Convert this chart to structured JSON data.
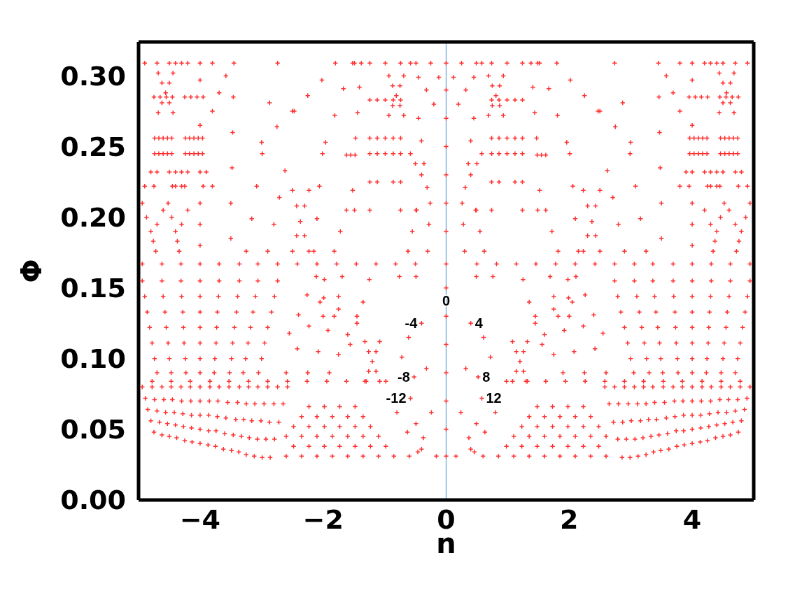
{
  "chart_data": {
    "type": "scatter",
    "xlabel": "n",
    "ylabel": "Φ",
    "marker": "cross",
    "xlim": [
      -5,
      5
    ],
    "xticks": [
      {
        "value": -4,
        "label": "−4"
      },
      {
        "value": -2,
        "label": "−2"
      },
      0,
      2,
      4
    ],
    "ylim": [
      0,
      0.324
    ],
    "yticks": [
      {
        "value": 0,
        "label": "0.00"
      },
      0.05,
      {
        "value": 0.1,
        "label": "0.10"
      },
      0.15,
      {
        "value": 0.2,
        "label": "0.20"
      },
      0.25,
      {
        "value": 0.3,
        "label": "0.30"
      }
    ],
    "ref_lines": [
      {
        "axis": "x",
        "value": 0,
        "color": "#5f9fd6"
      }
    ],
    "annotations": [
      {
        "text": "0",
        "x": 0,
        "y": 0.141
      },
      {
        "text": "-4",
        "x": -0.4,
        "y": 0.125
      },
      {
        "text": "4",
        "x": 0.4,
        "y": 0.125
      },
      {
        "text": "-8",
        "x": -0.52,
        "y": 0.087
      },
      {
        "text": "8",
        "x": 0.52,
        "y": 0.087
      },
      {
        "text": "-12",
        "x": -0.58,
        "y": 0.072
      },
      {
        "text": "12",
        "x": 0.58,
        "y": 0.072
      }
    ],
    "series": [
      {
        "color": "#ff3030",
        "x": [
          -4.94,
          -4.9,
          -4.86,
          -4.82,
          -4.78,
          -4.74,
          -4.7,
          -4.62,
          -4.6,
          -4.57,
          -4.55,
          -4.52,
          -4.5,
          -4.47,
          -4.31,
          -4.3,
          -4.28,
          -4.27,
          -4.26,
          -4.24,
          -4.23,
          -4,
          -4,
          -4,
          -4,
          -4,
          -4,
          -4,
          -3.69,
          -3.7,
          -3.72,
          -3.73,
          -3.74,
          -3.76,
          -3.77,
          -3.36,
          -3.39,
          -3.41,
          -3.44,
          -3.47,
          -3.49,
          -3.52,
          -3.06,
          -3.1,
          -3.14,
          -3.18,
          -3.22,
          -3.26,
          -3.3,
          -2.74,
          -2.79,
          -2.84,
          -2.9,
          -2.95,
          -3,
          -3.05,
          -4.94,
          -4.62,
          -4.31,
          -4,
          -3.69,
          -3.36,
          -3.06,
          -2.74,
          -2.42,
          -2.1,
          -1.78,
          -1.46,
          -1.14,
          -0.82,
          -0.5,
          -4.78,
          -4.47,
          -4.16,
          -3.84,
          -3.53,
          -3.21,
          -2.9,
          -2.58,
          -2.26,
          -1.94,
          -1.62,
          -1.3,
          -0.98,
          -4.94,
          -4.89,
          -4.85,
          -4.8,
          -4.75,
          -4.78,
          -4.74,
          -4.7,
          -4.66,
          -4.62,
          -4.62,
          -4.59,
          -4.56,
          -4.53,
          -4.5,
          -4.47,
          -4.45,
          -4.42,
          -4.4,
          -4.38,
          -4.31,
          -4.3,
          -4.28,
          -4.27,
          -4.25,
          -4.16,
          -4.15,
          -4.14,
          -4.14,
          -4.13,
          -4,
          -4,
          -4,
          -4,
          -4,
          -3.84,
          -3.85,
          -3.86,
          -3.86,
          -3.87,
          -3.69,
          -3.71,
          -3.72,
          -3.74,
          -3.75,
          -3.53,
          -3.55,
          -3.58,
          -3.6,
          -3.62,
          -3.36,
          -3.39,
          -3.42,
          -3.46,
          -3.49,
          -3.21,
          -3.25,
          -3.29,
          -3.33,
          -3.37,
          -3.06,
          -3.11,
          -3.16,
          -3.2,
          -3.25,
          -2.9,
          -2.96,
          -3.01,
          -3.07,
          -3.12,
          -2.74,
          -2.8,
          -2.87,
          -2.93,
          -2.99,
          -2.58,
          -2.65,
          -2.72,
          -2.79,
          -2.86,
          -2.6,
          -2.35,
          -2.1,
          -1.85,
          -1.6,
          -1.35,
          -1.1,
          -0.85,
          -0.6,
          -2.48,
          -2.23,
          -1.98,
          -1.73,
          -1.48,
          -1.23,
          -0.98,
          -2.6,
          -2.35,
          -2.1,
          -1.85,
          -1.6,
          -1.35,
          -1.1,
          -2.48,
          -2.23,
          -1.98,
          -1.73,
          -1.48,
          -1.23,
          -2.35,
          -2.1,
          -1.85,
          -1.6,
          -1.35,
          -2.23,
          -1.98,
          -1.73,
          -1.48,
          -0.49,
          -0.4,
          -0.32,
          -0.24,
          -0.16,
          -0.76,
          -0.61,
          -0.52,
          -0.37,
          -0.72,
          -0.58,
          -0.49,
          -0.4,
          -0.8,
          -0.63,
          -0.46,
          -2.55,
          -2.4,
          -2.26,
          -2.11,
          -2.6,
          -2.42,
          -2.23,
          -2.05,
          -2.25,
          -2.08,
          -1.92,
          -1.75,
          -1.9,
          -1.75,
          -1.6,
          -1.45,
          -1.69,
          -1.75,
          -1.82,
          -1.25,
          -1.35,
          -1.45,
          -1.56,
          -1.32,
          -1.26,
          -1.2,
          -1.14,
          -1.08,
          -1.08,
          -1.14,
          -1.26,
          -1.32,
          -1.98,
          -1.99,
          -2,
          -4,
          -4,
          -4,
          -4,
          -4,
          -4.74,
          -4.67,
          -4.6,
          -4.53,
          -4.46,
          -4.74,
          -4.67,
          -4.6,
          -4.53,
          -4.46,
          -4.75,
          -4.65,
          -4.55,
          -4.45,
          -4.9,
          -4.7,
          -4.5,
          -4.3,
          -4.8,
          -4.7,
          -4.5,
          -4.4,
          -4.9,
          -4.75,
          -4.45,
          -4.3,
          -4.24,
          -4.17,
          -4.1,
          -4.03,
          -3.96,
          -4.24,
          -4.17,
          -4.1,
          -4.03,
          -3.96,
          -4.25,
          -4.15,
          -4.05,
          -3.95,
          -4.4,
          -4.2,
          -4,
          -3.8,
          -4.3,
          -4.2,
          -4,
          -3.9,
          -4.4,
          -4.25,
          -3.95,
          -3.8,
          -1.24,
          -1.12,
          -0.99,
          -0.86,
          -0.74,
          -1.24,
          -1.12,
          -0.99,
          -0.86,
          -0.74,
          -1.24,
          -1.12,
          -0.99,
          -0.86,
          -0.74,
          -1.49,
          -1.24,
          -0.99,
          -0.74,
          -0.49,
          -1.24,
          -1.12,
          -0.86,
          -0.74,
          -1.49,
          -1.24,
          -0.74,
          -0.49,
          -4.56,
          -4.62,
          -4.5,
          -4.62,
          -4.5,
          -4.68,
          -4.44,
          -4.68,
          -4.44,
          -0.81,
          -0.87,
          -0.75,
          -0.87,
          -0.75,
          -0.93,
          -0.69,
          -0.93,
          -0.69,
          -3.58,
          -3.69,
          -3.8,
          -3.45,
          -3.46,
          -3.47,
          -3.48,
          -3.5,
          -3.5,
          -2.74,
          -2.87,
          -3,
          -2.75,
          -2.5,
          -2.99,
          -3.08,
          -3.16,
          -3.25,
          -2.62,
          -2.71,
          -2.8,
          -2.9,
          -4.94,
          -4.87,
          -4.8,
          -4.76,
          -4.72,
          -4.6,
          -4.7,
          -4.52,
          -4.46,
          -4.4,
          -4.37,
          -4.34,
          -4.2,
          -4.3,
          -1.8,
          -2.02,
          -2.25,
          -2.47,
          -1.52,
          -1.67,
          -1.81,
          -1.96,
          -1.38,
          -1.41,
          -1.44,
          -1.47,
          -2.5,
          -2.43,
          -2.37,
          -2.3,
          -2.23,
          -2.5,
          -2.43,
          -2.3,
          -2.23,
          -2.15,
          -2.1,
          -2.06,
          -2.01,
          -1.82,
          -1.72,
          -1.62,
          -1.52,
          -1.62,
          -1.55,
          -1.48,
          -0.58,
          -0.45,
          -0.32,
          -0.2,
          -0.45,
          -0.4,
          -0.36,
          -0.31,
          -0.58,
          -0.5,
          -0.4,
          -0.25,
          -0.12,
          -0.62,
          -0.55,
          -0.48,
          -0.3,
          -0.28,
          -0.26
        ],
        "values": [
          0.155,
          0.144,
          0.133,
          0.122,
          0.111,
          0.1,
          0.09,
          0.155,
          0.144,
          0.133,
          0.122,
          0.111,
          0.1,
          0.09,
          0.155,
          0.144,
          0.133,
          0.122,
          0.111,
          0.1,
          0.09,
          0.155,
          0.144,
          0.133,
          0.122,
          0.111,
          0.1,
          0.09,
          0.155,
          0.144,
          0.133,
          0.122,
          0.111,
          0.1,
          0.09,
          0.155,
          0.144,
          0.133,
          0.122,
          0.111,
          0.1,
          0.09,
          0.155,
          0.144,
          0.133,
          0.122,
          0.111,
          0.1,
          0.09,
          0.155,
          0.144,
          0.133,
          0.122,
          0.111,
          0.1,
          0.09,
          0.167,
          0.167,
          0.167,
          0.167,
          0.167,
          0.167,
          0.167,
          0.167,
          0.167,
          0.167,
          0.167,
          0.167,
          0.167,
          0.167,
          0.167,
          0.084,
          0.084,
          0.084,
          0.084,
          0.084,
          0.084,
          0.084,
          0.084,
          0.084,
          0.084,
          0.084,
          0.084,
          0.084,
          0.08,
          0.072,
          0.064,
          0.056,
          0.048,
          0.08,
          0.071,
          0.063,
          0.055,
          0.046,
          0.08,
          0.071,
          0.062,
          0.054,
          0.045,
          0.08,
          0.071,
          0.062,
          0.053,
          0.044,
          0.08,
          0.07,
          0.061,
          0.052,
          0.042,
          0.08,
          0.07,
          0.06,
          0.051,
          0.041,
          0.08,
          0.07,
          0.06,
          0.05,
          0.04,
          0.08,
          0.07,
          0.06,
          0.049,
          0.039,
          0.08,
          0.07,
          0.059,
          0.049,
          0.038,
          0.08,
          0.069,
          0.058,
          0.047,
          0.036,
          0.08,
          0.069,
          0.057,
          0.046,
          0.035,
          0.08,
          0.068,
          0.057,
          0.045,
          0.034,
          0.08,
          0.068,
          0.056,
          0.044,
          0.032,
          0.08,
          0.068,
          0.056,
          0.043,
          0.031,
          0.08,
          0.068,
          0.055,
          0.043,
          0.03,
          0.08,
          0.068,
          0.055,
          0.043,
          0.03,
          0.031,
          0.031,
          0.031,
          0.031,
          0.031,
          0.031,
          0.031,
          0.031,
          0.031,
          0.038,
          0.038,
          0.038,
          0.038,
          0.038,
          0.038,
          0.038,
          0.045,
          0.045,
          0.045,
          0.045,
          0.045,
          0.045,
          0.045,
          0.052,
          0.052,
          0.052,
          0.052,
          0.052,
          0.052,
          0.059,
          0.059,
          0.059,
          0.059,
          0.059,
          0.066,
          0.066,
          0.066,
          0.066,
          0.158,
          0.125,
          0.093,
          0.062,
          0.031,
          0.158,
          0.115,
          0.087,
          0.044,
          0.101,
          0.072,
          0.054,
          0.036,
          0.062,
          0.048,
          0.034,
          0.118,
          0.131,
          0.145,
          0.158,
          0.09,
          0.107,
          0.123,
          0.14,
          0.09,
          0.105,
          0.12,
          0.135,
          0.09,
          0.103,
          0.117,
          0.13,
          0.158,
          0.144,
          0.13,
          0.156,
          0.14,
          0.125,
          0.11,
          0.112,
          0.105,
          0.098,
          0.091,
          0.084,
          0.112,
          0.105,
          0.091,
          0.084,
          0.156,
          0.143,
          0.13,
          0.18,
          0.195,
          0.21,
          0.265,
          0.297,
          0.256,
          0.256,
          0.256,
          0.256,
          0.256,
          0.245,
          0.245,
          0.245,
          0.245,
          0.245,
          0.285,
          0.285,
          0.285,
          0.285,
          0.309,
          0.309,
          0.309,
          0.309,
          0.232,
          0.232,
          0.232,
          0.232,
          0.222,
          0.222,
          0.222,
          0.222,
          0.256,
          0.256,
          0.256,
          0.256,
          0.256,
          0.245,
          0.245,
          0.245,
          0.245,
          0.245,
          0.285,
          0.285,
          0.285,
          0.285,
          0.309,
          0.309,
          0.309,
          0.309,
          0.232,
          0.232,
          0.232,
          0.232,
          0.222,
          0.222,
          0.222,
          0.222,
          0.256,
          0.256,
          0.256,
          0.256,
          0.256,
          0.245,
          0.245,
          0.245,
          0.245,
          0.245,
          0.283,
          0.283,
          0.283,
          0.283,
          0.283,
          0.309,
          0.309,
          0.309,
          0.309,
          0.309,
          0.225,
          0.225,
          0.225,
          0.225,
          0.205,
          0.205,
          0.205,
          0.205,
          0.288,
          0.295,
          0.295,
          0.281,
          0.281,
          0.302,
          0.302,
          0.274,
          0.274,
          0.286,
          0.293,
          0.293,
          0.279,
          0.279,
          0.3,
          0.3,
          0.272,
          0.272,
          0.3,
          0.288,
          0.275,
          0.309,
          0.285,
          0.26,
          0.235,
          0.21,
          0.185,
          0.309,
          0.281,
          0.253,
          0.264,
          0.275,
          0.245,
          0.222,
          0.199,
          0.176,
          0.233,
          0.214,
          0.195,
          0.176,
          0.21,
          0.2,
          0.19,
          0.183,
          0.176,
          0.205,
          0.195,
          0.21,
          0.2,
          0.19,
          0.183,
          0.176,
          0.205,
          0.195,
          0.309,
          0.297,
          0.286,
          0.275,
          0.309,
          0.291,
          0.272,
          0.253,
          0.309,
          0.292,
          0.274,
          0.256,
          0.176,
          0.187,
          0.197,
          0.208,
          0.219,
          0.219,
          0.208,
          0.187,
          0.176,
          0.176,
          0.199,
          0.222,
          0.245,
          0.176,
          0.19,
          0.205,
          0.219,
          0.244,
          0.244,
          0.244,
          0.309,
          0.299,
          0.29,
          0.28,
          0.27,
          0.254,
          0.238,
          0.221,
          0.245,
          0.238,
          0.23,
          0.309,
          0.299,
          0.176,
          0.19,
          0.205,
          0.176,
          0.195,
          0.21
        ]
      },
      {
        "color": "#ff3030",
        "x": [
          4.94,
          4.9,
          4.86,
          4.82,
          4.78,
          4.74,
          4.7,
          4.62,
          4.6,
          4.57,
          4.55,
          4.52,
          4.5,
          4.47,
          4.31,
          4.3,
          4.28,
          4.27,
          4.26,
          4.24,
          4.23,
          4,
          4,
          4,
          4,
          4,
          4,
          4,
          3.69,
          3.7,
          3.72,
          3.73,
          3.74,
          3.76,
          3.77,
          3.36,
          3.39,
          3.41,
          3.44,
          3.47,
          3.49,
          3.52,
          3.06,
          3.1,
          3.14,
          3.18,
          3.22,
          3.26,
          3.3,
          2.74,
          2.79,
          2.84,
          2.9,
          2.95,
          3,
          3.05,
          4.94,
          4.62,
          4.31,
          4,
          3.69,
          3.36,
          3.06,
          2.74,
          2.42,
          2.1,
          1.78,
          1.46,
          1.14,
          0.82,
          0.5,
          4.78,
          4.47,
          4.16,
          3.84,
          3.53,
          3.21,
          2.9,
          2.58,
          2.26,
          1.94,
          1.62,
          1.3,
          0.98,
          4.94,
          4.89,
          4.85,
          4.8,
          4.75,
          4.78,
          4.74,
          4.7,
          4.66,
          4.62,
          4.62,
          4.59,
          4.56,
          4.53,
          4.5,
          4.47,
          4.45,
          4.42,
          4.4,
          4.38,
          4.31,
          4.3,
          4.28,
          4.27,
          4.25,
          4.16,
          4.15,
          4.14,
          4.14,
          4.13,
          4,
          4,
          4,
          4,
          4,
          3.84,
          3.85,
          3.86,
          3.86,
          3.87,
          3.69,
          3.71,
          3.72,
          3.74,
          3.75,
          3.53,
          3.55,
          3.58,
          3.6,
          3.62,
          3.36,
          3.39,
          3.42,
          3.46,
          3.49,
          3.21,
          3.25,
          3.29,
          3.33,
          3.37,
          3.06,
          3.11,
          3.16,
          3.2,
          3.25,
          2.9,
          2.96,
          3.01,
          3.07,
          3.12,
          2.74,
          2.8,
          2.87,
          2.93,
          2.99,
          2.58,
          2.65,
          2.72,
          2.79,
          2.86,
          2.6,
          2.35,
          2.1,
          1.85,
          1.6,
          1.35,
          1.1,
          0.85,
          0.6,
          2.48,
          2.23,
          1.98,
          1.73,
          1.48,
          1.23,
          0.98,
          2.6,
          2.35,
          2.1,
          1.85,
          1.6,
          1.35,
          1.1,
          2.48,
          2.23,
          1.98,
          1.73,
          1.48,
          1.23,
          2.35,
          2.1,
          1.85,
          1.6,
          1.35,
          2.23,
          1.98,
          1.73,
          1.48,
          0.49,
          0.4,
          0.32,
          0.24,
          0.16,
          0.76,
          0.61,
          0.52,
          0.37,
          0.72,
          0.58,
          0.49,
          0.4,
          0.8,
          0.63,
          0.46,
          2.55,
          2.4,
          2.26,
          2.11,
          2.6,
          2.42,
          2.23,
          2.05,
          2.25,
          2.08,
          1.92,
          1.75,
          1.9,
          1.75,
          1.6,
          1.45,
          1.69,
          1.75,
          1.82,
          1.25,
          1.35,
          1.45,
          1.56,
          1.32,
          1.26,
          1.2,
          1.14,
          1.08,
          1.08,
          1.14,
          1.26,
          1.32,
          1.98,
          1.99,
          2,
          4,
          4,
          4,
          4,
          4,
          4.74,
          4.67,
          4.6,
          4.53,
          4.46,
          4.74,
          4.67,
          4.6,
          4.53,
          4.46,
          4.75,
          4.65,
          4.55,
          4.45,
          4.9,
          4.7,
          4.5,
          4.3,
          4.8,
          4.7,
          4.5,
          4.4,
          4.9,
          4.75,
          4.45,
          4.3,
          4.24,
          4.17,
          4.1,
          4.03,
          3.96,
          4.24,
          4.17,
          4.1,
          4.03,
          3.96,
          4.25,
          4.15,
          4.05,
          3.95,
          4.4,
          4.2,
          4,
          3.8,
          4.3,
          4.2,
          4,
          3.9,
          4.4,
          4.25,
          3.95,
          3.8,
          1.24,
          1.12,
          0.99,
          0.86,
          0.74,
          1.24,
          1.12,
          0.99,
          0.86,
          0.74,
          1.24,
          1.12,
          0.99,
          0.86,
          0.74,
          1.49,
          1.24,
          0.99,
          0.74,
          0.49,
          1.24,
          1.12,
          0.86,
          0.74,
          1.49,
          1.24,
          0.74,
          0.49,
          4.56,
          4.62,
          4.5,
          4.62,
          4.5,
          4.68,
          4.44,
          4.68,
          4.44,
          0.81,
          0.87,
          0.75,
          0.87,
          0.75,
          0.93,
          0.69,
          0.93,
          0.69,
          3.58,
          3.69,
          3.8,
          3.45,
          3.46,
          3.47,
          3.48,
          3.5,
          3.5,
          2.74,
          2.87,
          3,
          2.75,
          2.5,
          2.99,
          3.08,
          3.16,
          3.25,
          2.62,
          2.71,
          2.8,
          2.9,
          4.94,
          4.87,
          4.8,
          4.76,
          4.72,
          4.6,
          4.7,
          4.52,
          4.46,
          4.4,
          4.37,
          4.34,
          4.2,
          4.3,
          1.8,
          2.02,
          2.25,
          2.47,
          1.52,
          1.67,
          1.81,
          1.96,
          1.38,
          1.41,
          1.44,
          1.47,
          2.5,
          2.43,
          2.37,
          2.3,
          2.23,
          2.5,
          2.43,
          2.3,
          2.23,
          2.15,
          2.1,
          2.06,
          2.01,
          1.82,
          1.72,
          1.62,
          1.52,
          1.62,
          1.55,
          1.48,
          0.58,
          0.45,
          0.32,
          0.2,
          0.45,
          0.4,
          0.36,
          0.31,
          0.58,
          0.5,
          0.4,
          0.25,
          0.12,
          0.62,
          0.55,
          0.48,
          0.3,
          0.28,
          0.26
        ],
        "values": [
          0.155,
          0.144,
          0.133,
          0.122,
          0.111,
          0.1,
          0.09,
          0.155,
          0.144,
          0.133,
          0.122,
          0.111,
          0.1,
          0.09,
          0.155,
          0.144,
          0.133,
          0.122,
          0.111,
          0.1,
          0.09,
          0.155,
          0.144,
          0.133,
          0.122,
          0.111,
          0.1,
          0.09,
          0.155,
          0.144,
          0.133,
          0.122,
          0.111,
          0.1,
          0.09,
          0.155,
          0.144,
          0.133,
          0.122,
          0.111,
          0.1,
          0.09,
          0.155,
          0.144,
          0.133,
          0.122,
          0.111,
          0.1,
          0.09,
          0.155,
          0.144,
          0.133,
          0.122,
          0.111,
          0.1,
          0.09,
          0.167,
          0.167,
          0.167,
          0.167,
          0.167,
          0.167,
          0.167,
          0.167,
          0.167,
          0.167,
          0.167,
          0.167,
          0.167,
          0.167,
          0.167,
          0.084,
          0.084,
          0.084,
          0.084,
          0.084,
          0.084,
          0.084,
          0.084,
          0.084,
          0.084,
          0.084,
          0.084,
          0.084,
          0.08,
          0.072,
          0.064,
          0.056,
          0.048,
          0.08,
          0.071,
          0.063,
          0.055,
          0.046,
          0.08,
          0.071,
          0.062,
          0.054,
          0.045,
          0.08,
          0.071,
          0.062,
          0.053,
          0.044,
          0.08,
          0.07,
          0.061,
          0.052,
          0.042,
          0.08,
          0.07,
          0.06,
          0.051,
          0.041,
          0.08,
          0.07,
          0.06,
          0.05,
          0.04,
          0.08,
          0.07,
          0.06,
          0.049,
          0.039,
          0.08,
          0.07,
          0.059,
          0.049,
          0.038,
          0.08,
          0.069,
          0.058,
          0.047,
          0.036,
          0.08,
          0.069,
          0.057,
          0.046,
          0.035,
          0.08,
          0.068,
          0.057,
          0.045,
          0.034,
          0.08,
          0.068,
          0.056,
          0.044,
          0.032,
          0.08,
          0.068,
          0.056,
          0.043,
          0.031,
          0.08,
          0.068,
          0.055,
          0.043,
          0.03,
          0.08,
          0.068,
          0.055,
          0.043,
          0.03,
          0.031,
          0.031,
          0.031,
          0.031,
          0.031,
          0.031,
          0.031,
          0.031,
          0.031,
          0.038,
          0.038,
          0.038,
          0.038,
          0.038,
          0.038,
          0.038,
          0.045,
          0.045,
          0.045,
          0.045,
          0.045,
          0.045,
          0.045,
          0.052,
          0.052,
          0.052,
          0.052,
          0.052,
          0.052,
          0.059,
          0.059,
          0.059,
          0.059,
          0.059,
          0.066,
          0.066,
          0.066,
          0.066,
          0.158,
          0.125,
          0.093,
          0.062,
          0.031,
          0.158,
          0.115,
          0.087,
          0.044,
          0.101,
          0.072,
          0.054,
          0.036,
          0.062,
          0.048,
          0.034,
          0.118,
          0.131,
          0.145,
          0.158,
          0.09,
          0.107,
          0.123,
          0.14,
          0.09,
          0.105,
          0.12,
          0.135,
          0.09,
          0.103,
          0.117,
          0.13,
          0.158,
          0.144,
          0.13,
          0.156,
          0.14,
          0.125,
          0.11,
          0.112,
          0.105,
          0.098,
          0.091,
          0.084,
          0.112,
          0.105,
          0.091,
          0.084,
          0.156,
          0.143,
          0.13,
          0.18,
          0.195,
          0.21,
          0.265,
          0.297,
          0.256,
          0.256,
          0.256,
          0.256,
          0.256,
          0.245,
          0.245,
          0.245,
          0.245,
          0.245,
          0.285,
          0.285,
          0.285,
          0.285,
          0.309,
          0.309,
          0.309,
          0.309,
          0.232,
          0.232,
          0.232,
          0.232,
          0.222,
          0.222,
          0.222,
          0.222,
          0.256,
          0.256,
          0.256,
          0.256,
          0.256,
          0.245,
          0.245,
          0.245,
          0.245,
          0.245,
          0.285,
          0.285,
          0.285,
          0.285,
          0.309,
          0.309,
          0.309,
          0.309,
          0.232,
          0.232,
          0.232,
          0.232,
          0.222,
          0.222,
          0.222,
          0.222,
          0.256,
          0.256,
          0.256,
          0.256,
          0.256,
          0.245,
          0.245,
          0.245,
          0.245,
          0.245,
          0.283,
          0.283,
          0.283,
          0.283,
          0.283,
          0.309,
          0.309,
          0.309,
          0.309,
          0.309,
          0.225,
          0.225,
          0.225,
          0.225,
          0.205,
          0.205,
          0.205,
          0.205,
          0.288,
          0.295,
          0.295,
          0.281,
          0.281,
          0.302,
          0.302,
          0.274,
          0.274,
          0.286,
          0.293,
          0.293,
          0.279,
          0.279,
          0.3,
          0.3,
          0.272,
          0.272,
          0.3,
          0.288,
          0.275,
          0.309,
          0.285,
          0.26,
          0.235,
          0.21,
          0.185,
          0.309,
          0.281,
          0.253,
          0.264,
          0.275,
          0.245,
          0.222,
          0.199,
          0.176,
          0.233,
          0.214,
          0.195,
          0.176,
          0.21,
          0.2,
          0.19,
          0.183,
          0.176,
          0.205,
          0.195,
          0.21,
          0.2,
          0.19,
          0.183,
          0.176,
          0.205,
          0.195,
          0.309,
          0.297,
          0.286,
          0.275,
          0.309,
          0.291,
          0.272,
          0.253,
          0.309,
          0.292,
          0.274,
          0.256,
          0.176,
          0.187,
          0.197,
          0.208,
          0.219,
          0.219,
          0.208,
          0.187,
          0.176,
          0.176,
          0.199,
          0.222,
          0.245,
          0.176,
          0.19,
          0.205,
          0.219,
          0.244,
          0.244,
          0.244,
          0.309,
          0.299,
          0.29,
          0.28,
          0.27,
          0.254,
          0.238,
          0.221,
          0.245,
          0.238,
          0.23,
          0.309,
          0.299,
          0.176,
          0.19,
          0.205,
          0.176,
          0.195,
          0.21
        ]
      },
      {
        "color": "#ff3030",
        "x": [
          0,
          0,
          0,
          0,
          0,
          0,
          0,
          0,
          0,
          0,
          0,
          0,
          0,
          0,
          0
        ],
        "values": [
          0.031,
          0.05,
          0.07,
          0.09,
          0.11,
          0.13,
          0.15,
          0.167,
          0.19,
          0.21,
          0.23,
          0.25,
          0.27,
          0.29,
          0.309
        ]
      }
    ]
  }
}
